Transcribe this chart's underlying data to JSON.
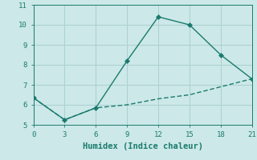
{
  "xlabel": "Humidex (Indice chaleur)",
  "line1_x": [
    0,
    3,
    6,
    9,
    12,
    15,
    18,
    21
  ],
  "line1_y": [
    6.35,
    5.25,
    5.85,
    8.2,
    10.4,
    10.0,
    8.5,
    7.3
  ],
  "line2_x": [
    0,
    3,
    6,
    9,
    12,
    15,
    18,
    21
  ],
  "line2_y": [
    6.35,
    5.25,
    5.85,
    6.0,
    6.3,
    6.5,
    6.9,
    7.3
  ],
  "line_color": "#1a7a6e",
  "bg_color": "#cce8e8",
  "grid_color": "#aad0d0",
  "xlim": [
    0,
    21
  ],
  "ylim": [
    5,
    11
  ],
  "xticks": [
    0,
    3,
    6,
    9,
    12,
    15,
    18,
    21
  ],
  "yticks": [
    5,
    6,
    7,
    8,
    9,
    10,
    11
  ],
  "markersize": 3,
  "linewidth": 1.0,
  "tick_fontsize": 6.5,
  "label_fontsize": 7.5
}
